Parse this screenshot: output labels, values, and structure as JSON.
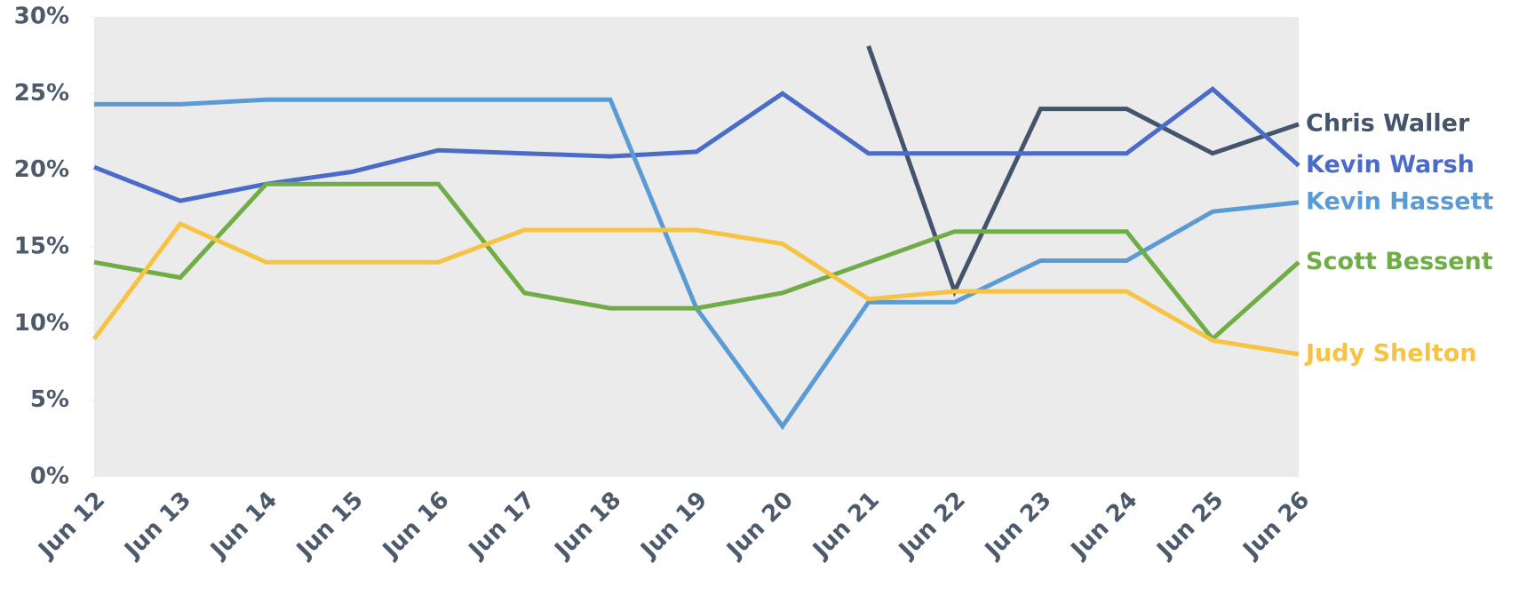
{
  "chart_data": {
    "type": "line",
    "categories": [
      "Jun 12",
      "Jun 13",
      "Jun 14",
      "Jun 15",
      "Jun 16",
      "Jun 17",
      "Jun 18",
      "Jun 19",
      "Jun 20",
      "Jun 21",
      "Jun 22",
      "Jun 23",
      "Jun 24",
      "Jun 25",
      "Jun 26"
    ],
    "series": [
      {
        "name": "Chris Waller",
        "color": "#44546a",
        "values": [
          null,
          null,
          null,
          null,
          null,
          null,
          null,
          null,
          null,
          28.1,
          12.1,
          24.0,
          24.0,
          21.1,
          23.0
        ]
      },
      {
        "name": "Kevin Warsh",
        "color": "#4a6cc8",
        "values": [
          20.2,
          18.0,
          19.1,
          19.9,
          21.3,
          21.1,
          20.9,
          21.2,
          25.0,
          21.1,
          21.1,
          21.1,
          21.1,
          25.3,
          20.3
        ]
      },
      {
        "name": "Kevin Hassett",
        "color": "#5b9bd5",
        "values": [
          24.3,
          24.3,
          24.6,
          24.6,
          24.6,
          24.6,
          24.6,
          11.0,
          3.3,
          11.4,
          11.4,
          14.1,
          14.1,
          17.3,
          17.9
        ]
      },
      {
        "name": "Scott Bessent",
        "color": "#70ad47",
        "values": [
          14.0,
          13.0,
          19.1,
          19.1,
          19.1,
          12.0,
          11.0,
          11.0,
          12.0,
          14.0,
          16.0,
          16.0,
          16.0,
          9.0,
          14.0
        ]
      },
      {
        "name": "Judy Shelton",
        "color": "#f6c342",
        "values": [
          9.0,
          16.5,
          14.0,
          14.0,
          14.0,
          16.1,
          16.1,
          16.1,
          15.2,
          11.6,
          12.1,
          12.1,
          12.1,
          8.9,
          8.0
        ]
      }
    ],
    "ylim": [
      0,
      30
    ],
    "yticks": [
      {
        "value": 0,
        "label": "0%"
      },
      {
        "value": 5,
        "label": "5%"
      },
      {
        "value": 10,
        "label": "10%"
      },
      {
        "value": 15,
        "label": "15%"
      },
      {
        "value": 20,
        "label": "20%"
      },
      {
        "value": 25,
        "label": "25%"
      },
      {
        "value": 30,
        "label": "30%"
      }
    ]
  }
}
